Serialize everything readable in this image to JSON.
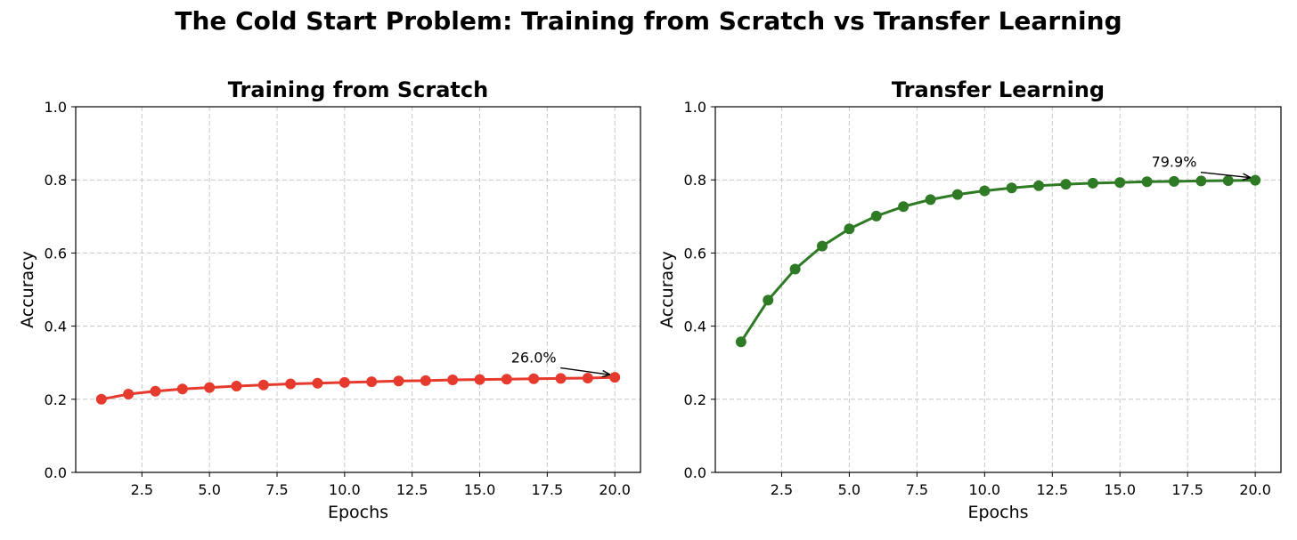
{
  "figure": {
    "title": "The Cold Start Problem: Training from Scratch vs Transfer Learning"
  },
  "chart_data": [
    {
      "type": "line",
      "title": "Training from Scratch",
      "xlabel": "Epochs",
      "ylabel": "Accuracy",
      "xlim": [
        0.05,
        20.95
      ],
      "ylim": [
        0.0,
        1.0
      ],
      "x_ticks": [
        "2.5",
        "5.0",
        "7.5",
        "10.0",
        "12.5",
        "15.0",
        "17.5",
        "20.0"
      ],
      "y_ticks": [
        "0.0",
        "0.2",
        "0.4",
        "0.6",
        "0.8",
        "1.0"
      ],
      "grid": true,
      "color": "#e53a2d",
      "x": [
        1,
        2,
        3,
        4,
        5,
        6,
        7,
        8,
        9,
        10,
        11,
        12,
        13,
        14,
        15,
        16,
        17,
        18,
        19,
        20
      ],
      "y": [
        0.2,
        0.214,
        0.222,
        0.228,
        0.232,
        0.236,
        0.239,
        0.242,
        0.244,
        0.246,
        0.248,
        0.25,
        0.251,
        0.253,
        0.254,
        0.255,
        0.256,
        0.257,
        0.258,
        0.26
      ],
      "annotation": {
        "text": "26.0%",
        "x": 20,
        "y": 0.26,
        "text_x": 17.0,
        "text_y": 0.315
      }
    },
    {
      "type": "line",
      "title": "Transfer Learning",
      "xlabel": "Epochs",
      "ylabel": "Accuracy",
      "xlim": [
        0.05,
        20.95
      ],
      "ylim": [
        0.0,
        1.0
      ],
      "x_ticks": [
        "2.5",
        "5.0",
        "7.5",
        "10.0",
        "12.5",
        "15.0",
        "17.5",
        "20.0"
      ],
      "y_ticks": [
        "0.0",
        "0.2",
        "0.4",
        "0.6",
        "0.8",
        "1.0"
      ],
      "grid": true,
      "color": "#2f7a25",
      "x": [
        1,
        2,
        3,
        4,
        5,
        6,
        7,
        8,
        9,
        10,
        11,
        12,
        13,
        14,
        15,
        16,
        17,
        18,
        19,
        20
      ],
      "y": [
        0.357,
        0.471,
        0.556,
        0.619,
        0.666,
        0.701,
        0.727,
        0.746,
        0.76,
        0.77,
        0.778,
        0.784,
        0.788,
        0.791,
        0.793,
        0.795,
        0.796,
        0.797,
        0.798,
        0.799
      ],
      "annotation": {
        "text": "79.9%",
        "x": 20,
        "y": 0.799,
        "text_x": 17.0,
        "text_y": 0.85
      }
    }
  ]
}
